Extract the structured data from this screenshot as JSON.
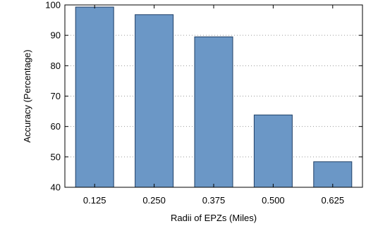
{
  "chart_data": {
    "type": "bar",
    "categories": [
      "0.125",
      "0.250",
      "0.375",
      "0.500",
      "0.625"
    ],
    "values": [
      99.3,
      96.8,
      89.5,
      63.8,
      48.4
    ],
    "xlabel": "Radii of EPZs (Miles)",
    "ylabel": "Accuracy (Percentage)",
    "ylim": [
      40,
      100
    ],
    "yticks": [
      40,
      50,
      60,
      70,
      80,
      90,
      100
    ],
    "grid": true,
    "grid_axis": "y",
    "legend": "none",
    "colors": {
      "bar_fill": "#6b97c6",
      "bar_stroke": "#1f3f66",
      "frame": "#000000",
      "grid": "#9a9a9a"
    }
  }
}
